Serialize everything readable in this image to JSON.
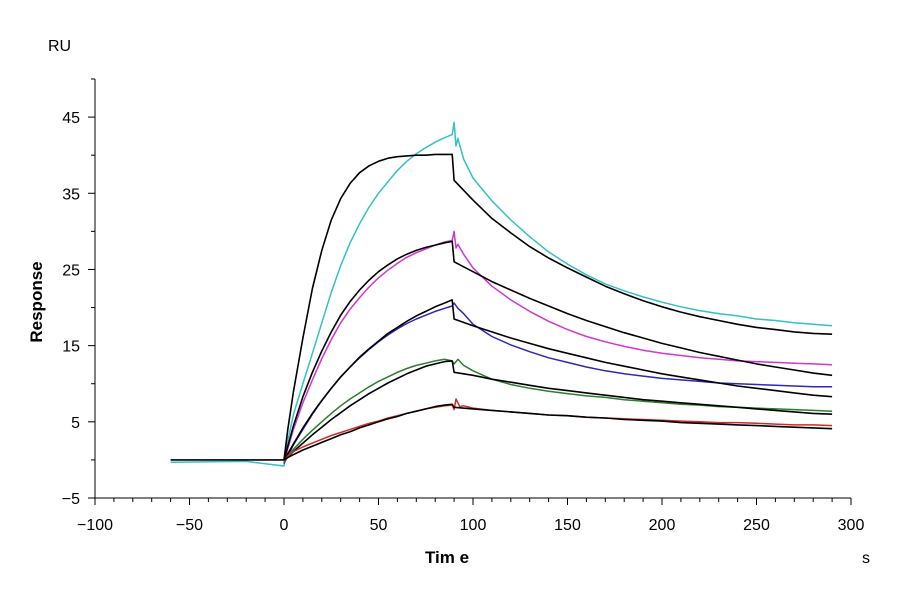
{
  "chart_data": {
    "type": "line",
    "title": "",
    "xlabel": "Tim e",
    "ylabel": "Response",
    "x_unit": "s",
    "y_unit": "RU",
    "xlim": [
      -100,
      300
    ],
    "ylim": [
      -5,
      50
    ],
    "x_ticks": [
      -100,
      -50,
      0,
      50,
      100,
      150,
      200,
      250,
      300
    ],
    "y_ticks": [
      -5,
      5,
      15,
      25,
      35,
      45
    ],
    "grid": false,
    "legend": "none",
    "series": [
      {
        "color": "#33c0c8",
        "kind": "measured",
        "x": [
          -60,
          -20,
          0,
          2,
          5,
          10,
          15,
          20,
          25,
          30,
          35,
          40,
          45,
          50,
          55,
          60,
          65,
          70,
          75,
          80,
          85,
          89,
          90,
          91,
          92,
          95,
          100,
          110,
          120,
          130,
          140,
          150,
          160,
          170,
          180,
          190,
          200,
          210,
          220,
          230,
          240,
          250,
          260,
          270,
          280,
          290
        ],
        "y": [
          -0.3,
          -0.2,
          -0.8,
          2.5,
          6,
          10,
          14,
          18,
          22,
          25.5,
          28.5,
          31,
          33.2,
          35,
          36.5,
          38,
          39.2,
          40.2,
          41,
          41.7,
          42.3,
          42.7,
          44.3,
          41.2,
          42.2,
          39.5,
          37,
          34,
          31.5,
          29.3,
          27.3,
          25.7,
          24.3,
          23.1,
          22.2,
          21.4,
          20.7,
          20.1,
          19.6,
          19.2,
          18.9,
          18.5,
          18.3,
          18,
          17.8,
          17.6
        ]
      },
      {
        "color": "#000000",
        "kind": "fit",
        "x": [
          -60,
          0,
          2,
          5,
          10,
          15,
          20,
          25,
          30,
          35,
          40,
          45,
          50,
          55,
          60,
          65,
          70,
          75,
          80,
          85,
          89,
          90,
          100,
          110,
          120,
          130,
          140,
          150,
          160,
          170,
          180,
          190,
          200,
          210,
          220,
          230,
          240,
          250,
          260,
          270,
          280,
          290
        ],
        "y": [
          0,
          0,
          4,
          9,
          16,
          22.5,
          27.5,
          31.5,
          34.3,
          36.3,
          37.7,
          38.6,
          39.2,
          39.6,
          39.8,
          39.9,
          40,
          40,
          40.1,
          40.1,
          40.1,
          36.7,
          34.1,
          31.7,
          29.8,
          28,
          26.5,
          25.2,
          24,
          22.8,
          21.8,
          20.9,
          20.1,
          19.4,
          18.8,
          18.3,
          17.8,
          17.4,
          17.1,
          16.8,
          16.6,
          16.5
        ]
      },
      {
        "color": "#d036d0",
        "kind": "measured",
        "x": [
          0,
          2,
          5,
          10,
          15,
          20,
          25,
          30,
          35,
          40,
          45,
          50,
          55,
          60,
          65,
          70,
          75,
          80,
          85,
          89,
          90,
          91,
          92,
          95,
          100,
          110,
          120,
          130,
          140,
          150,
          160,
          170,
          180,
          190,
          200,
          210,
          220,
          230,
          240,
          250,
          260,
          270,
          280,
          290
        ],
        "y": [
          -0.5,
          1.5,
          4,
          7.5,
          10.5,
          13.3,
          15.8,
          18,
          19.8,
          21.3,
          22.7,
          23.9,
          24.9,
          25.8,
          26.6,
          27.2,
          27.7,
          28.2,
          28.6,
          28.8,
          30,
          27.8,
          28.3,
          27,
          25.2,
          22.8,
          21,
          19.5,
          18.2,
          17.1,
          16.2,
          15.5,
          14.9,
          14.4,
          14,
          13.7,
          13.4,
          13.2,
          13,
          12.9,
          12.8,
          12.7,
          12.6,
          12.5
        ]
      },
      {
        "color": "#000000",
        "kind": "fit",
        "x": [
          0,
          2,
          5,
          10,
          15,
          20,
          25,
          30,
          35,
          40,
          45,
          50,
          55,
          60,
          65,
          70,
          75,
          80,
          85,
          89,
          90,
          100,
          110,
          120,
          130,
          140,
          150,
          160,
          170,
          180,
          190,
          200,
          210,
          220,
          230,
          240,
          250,
          260,
          270,
          280,
          290
        ],
        "y": [
          0,
          1.8,
          4.5,
          8.3,
          11.5,
          14.3,
          16.8,
          19,
          20.8,
          22.3,
          23.6,
          24.7,
          25.6,
          26.4,
          27,
          27.5,
          27.9,
          28.2,
          28.5,
          28.7,
          26,
          24.7,
          23.4,
          22.3,
          21.2,
          20.2,
          19.2,
          18.3,
          17.5,
          16.7,
          16,
          15.3,
          14.7,
          14.1,
          13.6,
          13.1,
          12.6,
          12.2,
          11.8,
          11.4,
          11.1
        ]
      },
      {
        "color": "#2a2ab8",
        "kind": "measured",
        "x": [
          0,
          2,
          5,
          10,
          15,
          20,
          25,
          30,
          35,
          40,
          45,
          50,
          55,
          60,
          65,
          70,
          75,
          80,
          85,
          89,
          90,
          92,
          95,
          100,
          110,
          120,
          130,
          140,
          150,
          160,
          170,
          180,
          190,
          200,
          210,
          220,
          230,
          240,
          250,
          260,
          270,
          280,
          290
        ],
        "y": [
          -0.5,
          0.5,
          2,
          4,
          6,
          7.8,
          9.4,
          10.9,
          12.2,
          13.4,
          14.5,
          15.5,
          16.4,
          17.2,
          17.9,
          18.5,
          19,
          19.5,
          19.9,
          20.2,
          20.6,
          19.9,
          19.2,
          17.8,
          16.2,
          15.1,
          14.2,
          13.4,
          12.8,
          12.2,
          11.7,
          11.3,
          11,
          10.7,
          10.5,
          10.3,
          10.1,
          10,
          9.9,
          9.8,
          9.7,
          9.6,
          9.6
        ]
      },
      {
        "color": "#000000",
        "kind": "fit",
        "x": [
          0,
          2,
          5,
          10,
          15,
          20,
          25,
          30,
          35,
          40,
          45,
          50,
          55,
          60,
          65,
          70,
          75,
          80,
          85,
          89,
          90,
          100,
          110,
          120,
          130,
          140,
          150,
          160,
          170,
          180,
          190,
          200,
          210,
          220,
          230,
          240,
          250,
          260,
          270,
          280,
          290
        ],
        "y": [
          0,
          0.8,
          2.1,
          4.2,
          6.1,
          7.8,
          9.4,
          10.9,
          12.2,
          13.5,
          14.6,
          15.6,
          16.6,
          17.4,
          18.2,
          18.9,
          19.5,
          20.1,
          20.6,
          21,
          18.5,
          17.6,
          16.8,
          16,
          15.3,
          14.6,
          14,
          13.4,
          12.8,
          12.3,
          11.8,
          11.3,
          10.9,
          10.5,
          10.1,
          9.7,
          9.4,
          9.1,
          8.8,
          8.5,
          8.3
        ]
      },
      {
        "color": "#2d7d2d",
        "kind": "measured",
        "x": [
          0,
          2,
          5,
          10,
          15,
          20,
          25,
          30,
          35,
          40,
          45,
          50,
          55,
          60,
          65,
          70,
          75,
          80,
          85,
          89,
          90,
          92,
          95,
          100,
          110,
          120,
          130,
          140,
          150,
          160,
          170,
          180,
          190,
          200,
          210,
          220,
          230,
          240,
          250,
          260,
          270,
          280,
          290
        ],
        "y": [
          -0.3,
          0.5,
          1.4,
          2.7,
          3.9,
          5,
          6.1,
          7.1,
          8,
          8.8,
          9.6,
          10.3,
          10.9,
          11.5,
          12,
          12.4,
          12.7,
          13,
          13.2,
          13,
          12.6,
          13.2,
          12.4,
          11.7,
          10.6,
          9.9,
          9.4,
          9,
          8.7,
          8.4,
          8.2,
          7.9,
          7.7,
          7.5,
          7.3,
          7.2,
          7,
          6.9,
          6.8,
          6.7,
          6.6,
          6.5,
          6.4
        ]
      },
      {
        "color": "#000000",
        "kind": "fit",
        "x": [
          0,
          2,
          5,
          10,
          15,
          20,
          25,
          30,
          35,
          40,
          45,
          50,
          55,
          60,
          65,
          70,
          75,
          80,
          85,
          89,
          90,
          100,
          110,
          120,
          130,
          140,
          150,
          160,
          170,
          180,
          190,
          200,
          210,
          220,
          230,
          240,
          250,
          260,
          270,
          280,
          290
        ],
        "y": [
          0,
          0.4,
          1.1,
          2.2,
          3.3,
          4.3,
          5.3,
          6.2,
          7.1,
          7.9,
          8.7,
          9.4,
          10.1,
          10.7,
          11.3,
          11.8,
          12.3,
          12.6,
          12.9,
          13,
          11.5,
          11.1,
          10.6,
          10.2,
          9.8,
          9.4,
          9.1,
          8.8,
          8.5,
          8.2,
          7.9,
          7.7,
          7.5,
          7.3,
          7.1,
          6.9,
          6.7,
          6.5,
          6.3,
          6.1,
          6
        ]
      },
      {
        "color": "#d02a2a",
        "kind": "measured",
        "x": [
          0,
          2,
          5,
          10,
          15,
          20,
          25,
          30,
          35,
          40,
          45,
          50,
          55,
          60,
          65,
          70,
          75,
          80,
          85,
          89,
          90,
          91,
          93,
          95,
          100,
          110,
          120,
          130,
          140,
          150,
          160,
          170,
          180,
          190,
          200,
          210,
          220,
          230,
          240,
          250,
          260,
          270,
          280,
          290
        ],
        "y": [
          -0.2,
          0.5,
          1.1,
          1.7,
          2.2,
          2.7,
          3.2,
          3.6,
          4,
          4.4,
          4.8,
          5.1,
          5.5,
          5.8,
          6.1,
          6.4,
          6.7,
          6.9,
          7.1,
          7.2,
          6.6,
          8,
          7,
          7.1,
          6.8,
          6.5,
          6.3,
          6.1,
          5.9,
          5.8,
          5.6,
          5.5,
          5.4,
          5.3,
          5.2,
          5.1,
          5,
          4.9,
          4.9,
          4.8,
          4.7,
          4.6,
          4.6,
          4.5
        ]
      },
      {
        "color": "#000000",
        "kind": "fit",
        "x": [
          0,
          2,
          5,
          10,
          15,
          20,
          25,
          30,
          35,
          40,
          45,
          50,
          55,
          60,
          65,
          70,
          75,
          80,
          85,
          89,
          90,
          100,
          110,
          120,
          130,
          140,
          150,
          160,
          170,
          180,
          190,
          200,
          210,
          220,
          230,
          240,
          250,
          260,
          270,
          280,
          290
        ],
        "y": [
          0,
          0.3,
          0.7,
          1.3,
          1.8,
          2.3,
          2.8,
          3.3,
          3.7,
          4.2,
          4.6,
          5,
          5.4,
          5.7,
          6.1,
          6.4,
          6.7,
          7,
          7.2,
          7.3,
          6.9,
          6.7,
          6.5,
          6.3,
          6.1,
          5.9,
          5.8,
          5.6,
          5.5,
          5.3,
          5.2,
          5.1,
          4.9,
          4.8,
          4.7,
          4.6,
          4.5,
          4.4,
          4.3,
          4.2,
          4.1
        ]
      }
    ]
  }
}
